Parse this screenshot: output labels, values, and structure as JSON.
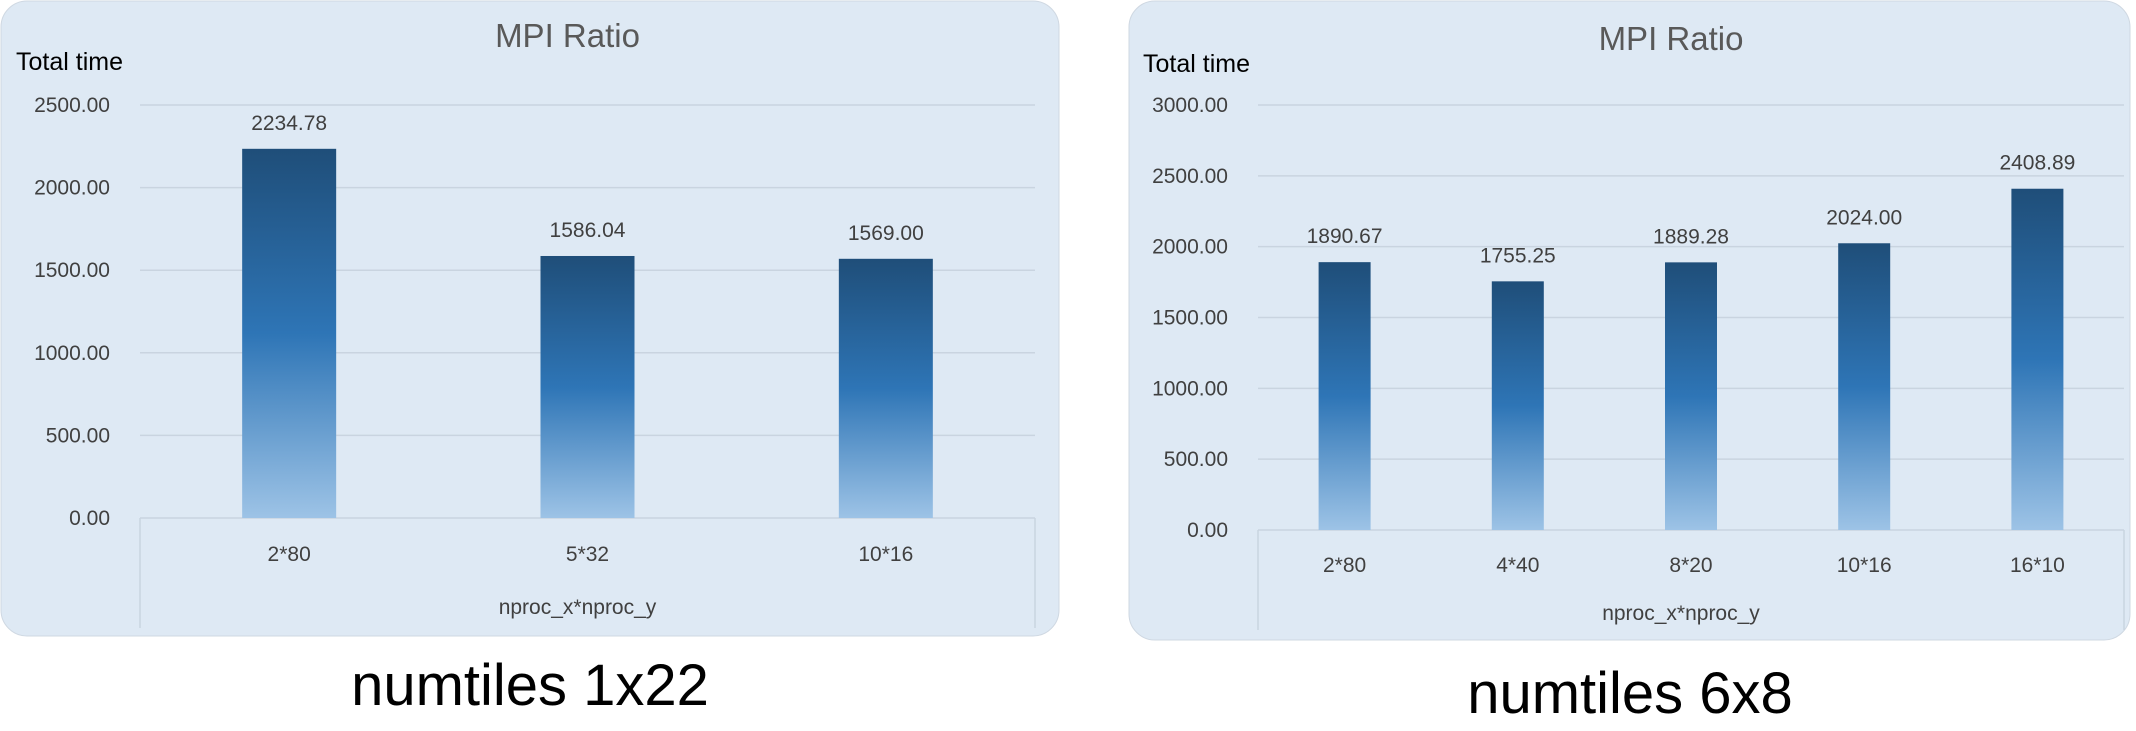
{
  "chart_data": [
    {
      "type": "bar",
      "title": "MPI Ratio",
      "ylabel": "Total time",
      "xlabel": "nproc_x*nproc_y",
      "categories": [
        "2*80",
        "5*32",
        "10*16"
      ],
      "values": [
        2234.78,
        1586.04,
        1569.0
      ],
      "value_labels": [
        "2234.78",
        "1586.04",
        "1569.00"
      ],
      "ylim": [
        0,
        2500
      ],
      "yticks": [
        "0.00",
        "500.00",
        "1000.00",
        "1500.00",
        "2000.00",
        "2500.00"
      ],
      "grid": true,
      "caption": "numtiles 1x22"
    },
    {
      "type": "bar",
      "title": "MPI Ratio",
      "ylabel": "Total time",
      "xlabel": "nproc_x*nproc_y",
      "categories": [
        "2*80",
        "4*40",
        "8*20",
        "10*16",
        "16*10"
      ],
      "values": [
        1890.67,
        1755.25,
        1889.28,
        2024.0,
        2408.89
      ],
      "value_labels": [
        "1890.67",
        "1755.25",
        "1889.28",
        "2024.00",
        "2408.89"
      ],
      "ylim": [
        0,
        3000
      ],
      "yticks": [
        "0.00",
        "500.00",
        "1000.00",
        "1500.00",
        "2000.00",
        "2500.00",
        "3000.00"
      ],
      "grid": true,
      "caption": "numtiles 6x8"
    }
  ],
  "colors": {
    "panel_bg": "#dee9f4",
    "bar_top": "#1f4e79",
    "bar_mid": "#2e75b6",
    "bar_bottom": "#9dc3e6",
    "grid": "#c9d4e0",
    "title": "#595959",
    "text": "#404040"
  }
}
